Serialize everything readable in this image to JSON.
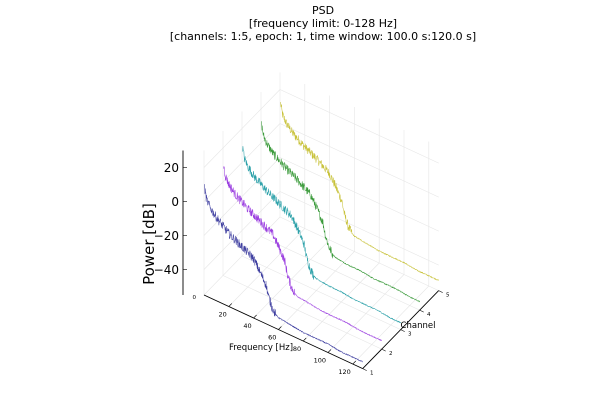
{
  "chart_data": {
    "type": "line",
    "projection": "3d-waterfall",
    "title_lines": [
      "PSD",
      "[frequency limit: 0-128 Hz]",
      "[channels: 1:5, epoch: 1, time window: 100.0 s:120.0 s]"
    ],
    "xlabel": "Frequency [Hz]",
    "ylabel": "Channel",
    "zlabel": "Power [dB]",
    "xlim": [
      0,
      128
    ],
    "ylim": [
      1,
      5
    ],
    "zlim": [
      -55,
      30
    ],
    "x_ticks": [
      "20",
      "40",
      "60",
      "80",
      "100",
      "120"
    ],
    "x_tick_values": [
      20,
      40,
      60,
      80,
      100,
      120
    ],
    "x_zero_label": "0",
    "y_ticks": [
      "1",
      "2",
      "3",
      "4",
      "5"
    ],
    "y_tick_values": [
      1,
      2,
      3,
      4,
      5
    ],
    "z_ticks": [
      "20",
      "0",
      "−20",
      "−40"
    ],
    "z_tick_values": [
      20,
      0,
      -20,
      -40
    ],
    "grid": true,
    "legend": "none",
    "series": [
      {
        "channel": 1,
        "color": "#3f3fa0",
        "points": [
          [
            0.5,
            8
          ],
          [
            2,
            2
          ],
          [
            5,
            -2
          ],
          [
            10,
            -6
          ],
          [
            20,
            -12
          ],
          [
            30,
            -16
          ],
          [
            40,
            -20
          ],
          [
            45,
            -26
          ],
          [
            50,
            -32
          ],
          [
            52,
            -38
          ],
          [
            55,
            -44
          ],
          [
            58,
            -47
          ],
          [
            60,
            -48
          ],
          [
            70,
            -49
          ],
          [
            80,
            -50
          ],
          [
            90,
            -50
          ],
          [
            100,
            -50
          ],
          [
            110,
            -51
          ],
          [
            120,
            -51
          ],
          [
            128,
            -51
          ]
        ]
      },
      {
        "channel": 2,
        "color": "#9b3fe0",
        "points": [
          [
            0.5,
            10
          ],
          [
            2,
            4
          ],
          [
            5,
            0
          ],
          [
            10,
            -4
          ],
          [
            20,
            -9
          ],
          [
            30,
            -13
          ],
          [
            40,
            -17
          ],
          [
            45,
            -23
          ],
          [
            50,
            -30
          ],
          [
            52,
            -37
          ],
          [
            55,
            -43
          ],
          [
            58,
            -46
          ],
          [
            60,
            -47
          ],
          [
            70,
            -48
          ],
          [
            80,
            -49
          ],
          [
            90,
            -49
          ],
          [
            100,
            -49
          ],
          [
            110,
            -50
          ],
          [
            120,
            -50
          ],
          [
            128,
            -50
          ]
        ]
      },
      {
        "channel": 3,
        "color": "#2aa0a8",
        "points": [
          [
            0.5,
            9
          ],
          [
            2,
            3
          ],
          [
            5,
            -1
          ],
          [
            10,
            -5
          ],
          [
            20,
            -10
          ],
          [
            30,
            -14
          ],
          [
            40,
            -18
          ],
          [
            45,
            -24
          ],
          [
            50,
            -31
          ],
          [
            52,
            -38
          ],
          [
            55,
            -44
          ],
          [
            58,
            -47
          ],
          [
            60,
            -48
          ],
          [
            70,
            -49
          ],
          [
            80,
            -49
          ],
          [
            90,
            -50
          ],
          [
            100,
            -50
          ],
          [
            110,
            -50
          ],
          [
            120,
            -51
          ],
          [
            128,
            -51
          ]
        ]
      },
      {
        "channel": 4,
        "color": "#3a9a3a",
        "points": [
          [
            0.5,
            11
          ],
          [
            2,
            5
          ],
          [
            5,
            1
          ],
          [
            10,
            -3
          ],
          [
            20,
            -8
          ],
          [
            30,
            -12
          ],
          [
            40,
            -17
          ],
          [
            45,
            -23
          ],
          [
            50,
            -30
          ],
          [
            52,
            -37
          ],
          [
            55,
            -43
          ],
          [
            58,
            -46
          ],
          [
            60,
            -47
          ],
          [
            70,
            -48
          ],
          [
            80,
            -48
          ],
          [
            90,
            -49
          ],
          [
            100,
            -49
          ],
          [
            110,
            -49
          ],
          [
            120,
            -50
          ],
          [
            128,
            -50
          ]
        ]
      },
      {
        "channel": 5,
        "color": "#c8c23a",
        "points": [
          [
            0.5,
            12
          ],
          [
            2,
            6
          ],
          [
            5,
            2
          ],
          [
            10,
            -2
          ],
          [
            20,
            -7
          ],
          [
            30,
            -11
          ],
          [
            40,
            -16
          ],
          [
            45,
            -22
          ],
          [
            50,
            -29
          ],
          [
            52,
            -36
          ],
          [
            55,
            -42
          ],
          [
            58,
            -45
          ],
          [
            60,
            -46
          ],
          [
            70,
            -47
          ],
          [
            80,
            -48
          ],
          [
            90,
            -48
          ],
          [
            100,
            -48
          ],
          [
            110,
            -49
          ],
          [
            120,
            -49
          ],
          [
            128,
            -49
          ]
        ]
      }
    ]
  }
}
